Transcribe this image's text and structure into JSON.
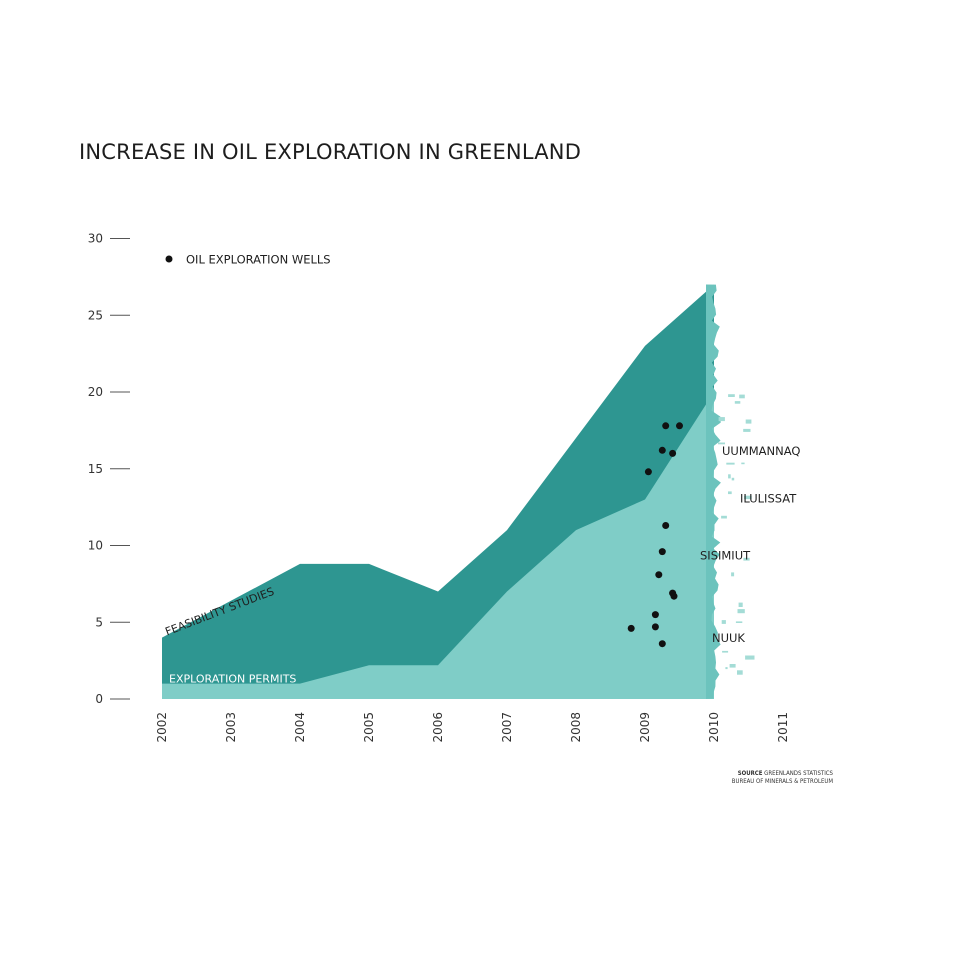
{
  "chart_data": {
    "type": "area",
    "title": "INCREASE IN OIL EXPLORATION IN GREENLAND",
    "x": [
      "2002",
      "2003",
      "2004",
      "2005",
      "2006",
      "2007",
      "2008",
      "2009",
      "2010",
      "2011"
    ],
    "ylim": [
      0,
      30
    ],
    "y_ticks": [
      "0",
      "5",
      "10",
      "15",
      "20",
      "25",
      "30"
    ],
    "series": [
      {
        "name": "FEASIBILITY STUDIES",
        "color": "#2e9691",
        "points": [
          [
            2002,
            4
          ],
          [
            2004,
            8.8
          ],
          [
            2005,
            8.8
          ],
          [
            2006,
            7
          ],
          [
            2007,
            11
          ],
          [
            2009,
            23
          ],
          [
            2010,
            27
          ]
        ]
      },
      {
        "name": "EXPLORATION PERMITS",
        "color": "#7fcdc7",
        "points": [
          [
            2002,
            1
          ],
          [
            2004,
            1
          ],
          [
            2005,
            2.2
          ],
          [
            2006,
            2.2
          ],
          [
            2007,
            7
          ],
          [
            2008,
            11
          ],
          [
            2009,
            13
          ],
          [
            2010,
            20
          ]
        ]
      }
    ],
    "legend": {
      "label": "OIL EXPLORATION WELLS",
      "placement": "top-left"
    },
    "wells": [
      [
        2009.3,
        17.8
      ],
      [
        2009.5,
        17.8
      ],
      [
        2009.25,
        16.2
      ],
      [
        2009.4,
        16
      ],
      [
        2009.05,
        14.8
      ],
      [
        2009.3,
        11.3
      ],
      [
        2009.25,
        9.6
      ],
      [
        2009.2,
        8.1
      ],
      [
        2009.4,
        6.9
      ],
      [
        2009.42,
        6.7
      ],
      [
        2009.15,
        5.5
      ],
      [
        2009.15,
        4.7
      ],
      [
        2008.8,
        4.6
      ],
      [
        2009.25,
        3.6
      ]
    ],
    "places": [
      "UUMMANNAQ",
      "ILULISSAT",
      "SISIMIUT",
      "NUUK"
    ],
    "grid": false
  },
  "source": {
    "label": "SOURCE",
    "line1": "GREENLANDS STATISTICS",
    "line2": "BUREAU OF MINERALS & PETROLEUM"
  }
}
